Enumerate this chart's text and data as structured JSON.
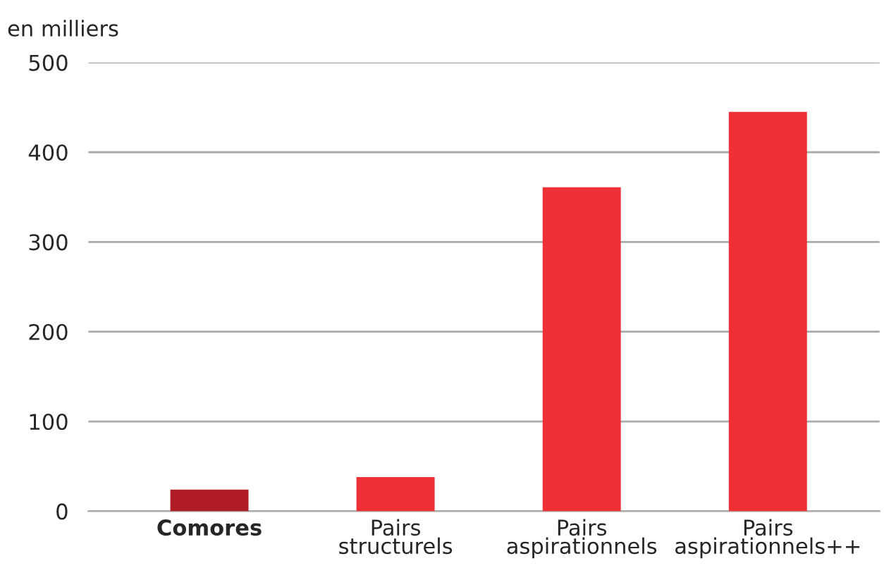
{
  "chart_data": {
    "type": "bar",
    "ylabel": "en milliers",
    "categories": [
      "Comores",
      "Pairs\nstructurels",
      "Pairs\naspirationnels",
      "Pairs\naspirationnels++"
    ],
    "values": [
      24,
      38,
      361,
      445
    ],
    "colors": [
      "#b01c24",
      "#ee3036",
      "#ee3036",
      "#ee3036"
    ],
    "ylim": [
      0,
      500
    ],
    "yticks": [
      0,
      100,
      200,
      300,
      400,
      500
    ],
    "grid": "y",
    "legend": false
  }
}
